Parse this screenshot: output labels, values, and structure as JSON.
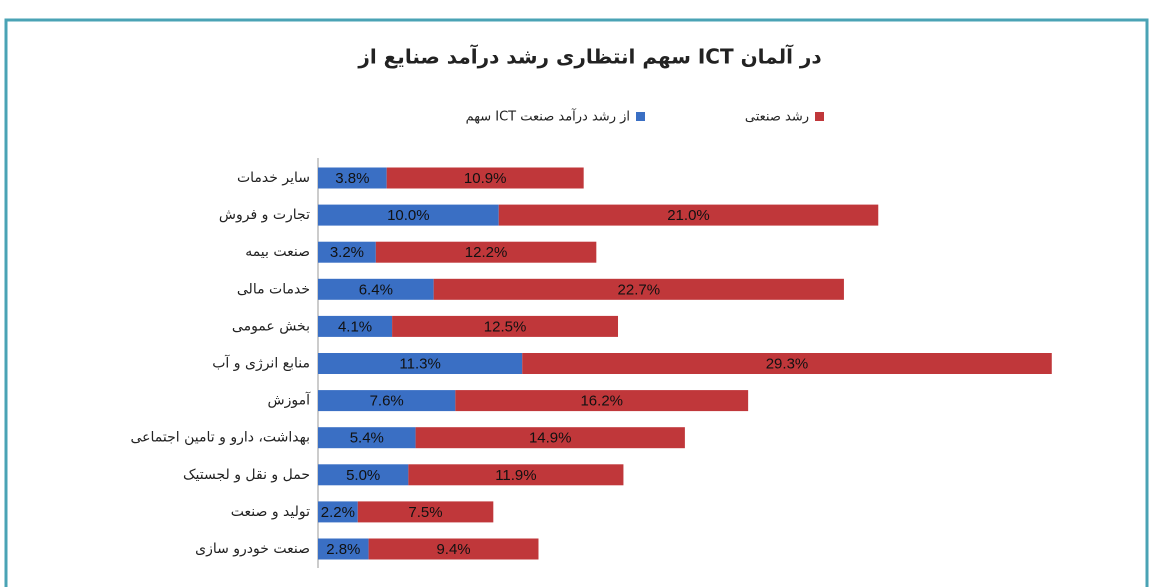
{
  "chart_data": {
    "type": "stacked-bar-horizontal",
    "title": "سهم انتظاری رشد درآمد صنایع از ICT در آلمان",
    "categories": [
      "سایر خدمات",
      "تجارت و فروش",
      "صنعت بیمه",
      "خدمات مالی",
      "بخش عمومی",
      "منابع انرژی و آب",
      "آموزش",
      "بهداشت، دارو و تامین اجتماعی",
      "حمل و نقل و لجستیک",
      "تولید و صنعت",
      "صنعت خودرو سازی"
    ],
    "series": [
      {
        "name": "سهم ICT از رشد درآمد صنعت",
        "color": "#3a6fc4",
        "values": [
          3.8,
          10.0,
          3.2,
          6.4,
          4.1,
          11.3,
          7.6,
          5.4,
          5.0,
          2.2,
          2.8
        ],
        "value_labels": [
          "3.8%",
          "10.0%",
          "3.2%",
          "6.4%",
          "4.1%",
          "11.3%",
          "7.6%",
          "5.4%",
          "5.0%",
          "2.2%",
          "2.8%"
        ]
      },
      {
        "name": "رشد صنعتی",
        "color": "#c0373a",
        "values": [
          10.9,
          21.0,
          12.2,
          22.7,
          12.5,
          29.3,
          16.2,
          14.9,
          11.9,
          7.5,
          9.4
        ],
        "value_labels": [
          "10.9%",
          "21.0%",
          "12.2%",
          "22.7%",
          "12.5%",
          "29.3%",
          "16.2%",
          "14.9%",
          "11.9%",
          "7.5%",
          "9.4%"
        ]
      }
    ],
    "xlim": [
      0,
      41
    ]
  }
}
